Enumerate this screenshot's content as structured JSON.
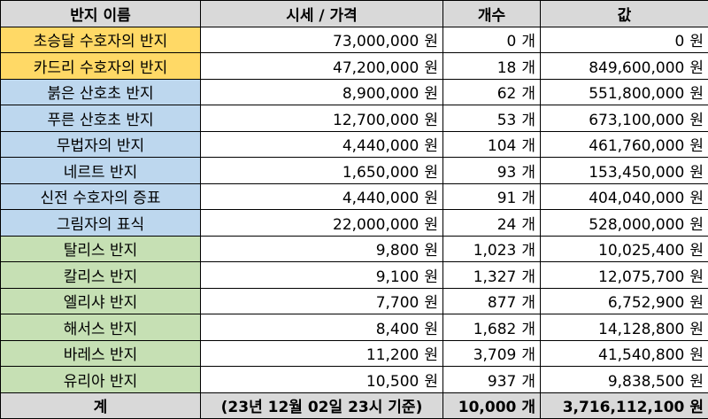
{
  "colors": {
    "header_bg": "#d9d9d9",
    "yellow_group": "#ffd966",
    "blue_group": "#bdd7ee",
    "green_group": "#c6e0b4"
  },
  "headers": {
    "name": "반지 이름",
    "price": "시세 / 가격",
    "count": "개수",
    "value": "값"
  },
  "rows": [
    {
      "group": "yellow",
      "name": "초승달 수호자의 반지",
      "price": "73,000,000",
      "price_unit": "원",
      "count": "0",
      "count_unit": "개",
      "value": "0",
      "value_unit": "원"
    },
    {
      "group": "yellow",
      "name": "카드리 수호자의 반지",
      "price": "47,200,000",
      "price_unit": "원",
      "count": "18",
      "count_unit": "개",
      "value": "849,600,000",
      "value_unit": "원"
    },
    {
      "group": "blue",
      "name": "붉은 산호초 반지",
      "price": "8,900,000",
      "price_unit": "원",
      "count": "62",
      "count_unit": "개",
      "value": "551,800,000",
      "value_unit": "원"
    },
    {
      "group": "blue",
      "name": "푸른 산호초 반지",
      "price": "12,700,000",
      "price_unit": "원",
      "count": "53",
      "count_unit": "개",
      "value": "673,100,000",
      "value_unit": "원"
    },
    {
      "group": "blue",
      "name": "무법자의 반지",
      "price": "4,440,000",
      "price_unit": "원",
      "count": "104",
      "count_unit": "개",
      "value": "461,760,000",
      "value_unit": "원"
    },
    {
      "group": "blue",
      "name": "네르트 반지",
      "price": "1,650,000",
      "price_unit": "원",
      "count": "93",
      "count_unit": "개",
      "value": "153,450,000",
      "value_unit": "원"
    },
    {
      "group": "blue",
      "name": "신전 수호자의 증표",
      "price": "4,440,000",
      "price_unit": "원",
      "count": "91",
      "count_unit": "개",
      "value": "404,040,000",
      "value_unit": "원"
    },
    {
      "group": "blue",
      "name": "그림자의 표식",
      "price": "22,000,000",
      "price_unit": "원",
      "count": "24",
      "count_unit": "개",
      "value": "528,000,000",
      "value_unit": "원"
    },
    {
      "group": "green",
      "name": "탈리스 반지",
      "price": "9,800",
      "price_unit": "원",
      "count": "1,023",
      "count_unit": "개",
      "value": "10,025,400",
      "value_unit": "원"
    },
    {
      "group": "green",
      "name": "칼리스 반지",
      "price": "9,100",
      "price_unit": "원",
      "count": "1,327",
      "count_unit": "개",
      "value": "12,075,700",
      "value_unit": "원"
    },
    {
      "group": "green",
      "name": "엘리샤 반지",
      "price": "7,700",
      "price_unit": "원",
      "count": "877",
      "count_unit": "개",
      "value": "6,752,900",
      "value_unit": "원"
    },
    {
      "group": "green",
      "name": "해서스 반지",
      "price": "8,400",
      "price_unit": "원",
      "count": "1,682",
      "count_unit": "개",
      "value": "14,128,800",
      "value_unit": "원"
    },
    {
      "group": "green",
      "name": "바레스 반지",
      "price": "11,200",
      "price_unit": "원",
      "count": "3,709",
      "count_unit": "개",
      "value": "41,540,800",
      "value_unit": "원"
    },
    {
      "group": "green",
      "name": "유리아 반지",
      "price": "10,500",
      "price_unit": "원",
      "count": "937",
      "count_unit": "개",
      "value": "9,838,500",
      "value_unit": "원"
    }
  ],
  "footer": {
    "label": "계",
    "note": "(23년 12월 02일 23시 기준)",
    "count": "10,000",
    "count_unit": "개",
    "value": "3,716,112,100",
    "value_unit": "원"
  }
}
